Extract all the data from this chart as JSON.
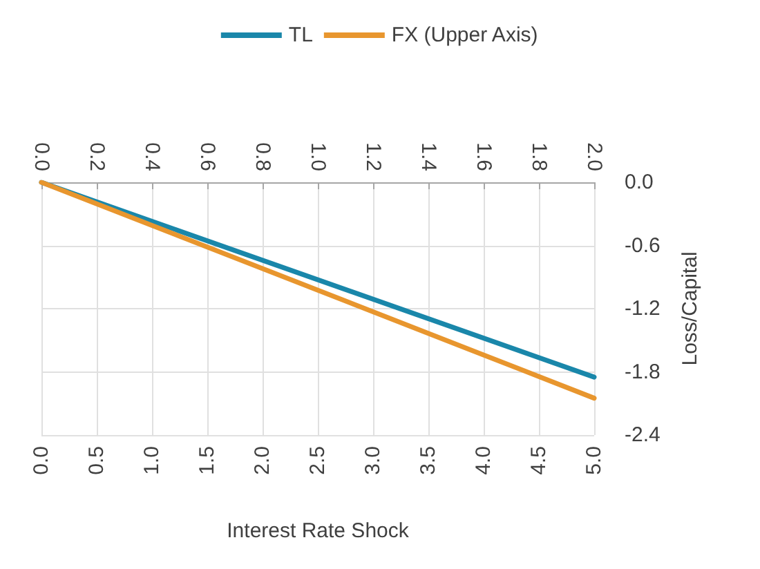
{
  "chart_data": {
    "type": "line",
    "xlabel": "Interest Rate Shock",
    "ylabel": "Loss/Capital",
    "xlim": [
      0,
      5
    ],
    "xticks": [
      {
        "value": 0,
        "label": "0.0"
      },
      {
        "value": 0.5,
        "label": "0.5"
      },
      {
        "value": 1,
        "label": "1.0"
      },
      {
        "value": 1.5,
        "label": "1.5"
      },
      {
        "value": 2,
        "label": "2.0"
      },
      {
        "value": 2.5,
        "label": "2.5"
      },
      {
        "value": 3,
        "label": "3.0"
      },
      {
        "value": 3.5,
        "label": "3.5"
      },
      {
        "value": 4,
        "label": "4.0"
      },
      {
        "value": 4.5,
        "label": "4.5"
      },
      {
        "value": 5,
        "label": "5.0"
      }
    ],
    "x2lim": [
      0,
      2
    ],
    "x2ticks": [
      {
        "value": 0,
        "label": "0.0"
      },
      {
        "value": 0.2,
        "label": "0.2"
      },
      {
        "value": 0.4,
        "label": "0.4"
      },
      {
        "value": 0.6,
        "label": "0.6"
      },
      {
        "value": 0.8,
        "label": "0.8"
      },
      {
        "value": 1,
        "label": "1.0"
      },
      {
        "value": 1.2,
        "label": "1.2"
      },
      {
        "value": 1.4,
        "label": "1.4"
      },
      {
        "value": 1.6,
        "label": "1.6"
      },
      {
        "value": 1.8,
        "label": "1.8"
      },
      {
        "value": 2,
        "label": "2.0"
      }
    ],
    "ylim": [
      -2.4,
      0
    ],
    "yticks": [
      {
        "value": 0,
        "label": "0.0"
      },
      {
        "value": -0.6,
        "label": "-0.6"
      },
      {
        "value": -1.2,
        "label": "-1.2"
      },
      {
        "value": -1.8,
        "label": "-1.8"
      },
      {
        "value": -2.4,
        "label": "-2.4"
      }
    ],
    "series": [
      {
        "name": "TL",
        "color": "#1a87aa",
        "x": [
          0,
          5
        ],
        "values": [
          0,
          -1.85
        ]
      },
      {
        "name": "FX (Upper Axis)",
        "color": "#e8962e",
        "axis": "x2",
        "x": [
          0,
          2
        ],
        "values": [
          0,
          -2.05
        ]
      }
    ],
    "grid": true,
    "legend": "top",
    "marker": "none",
    "line_style": "solid"
  }
}
